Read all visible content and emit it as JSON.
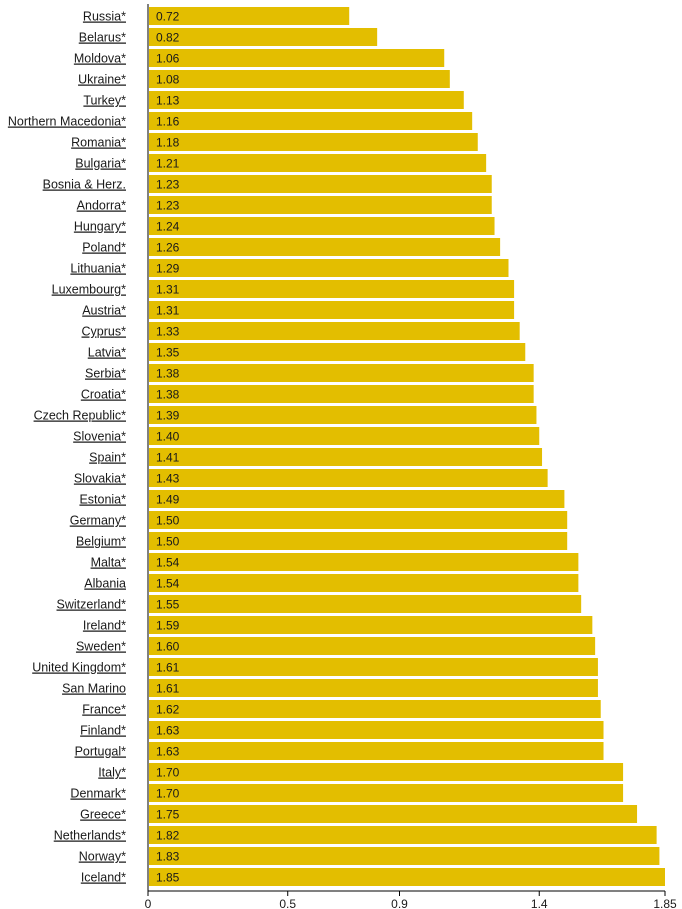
{
  "chart_data": {
    "type": "bar",
    "orientation": "horizontal",
    "bar_color": "#E3BE00",
    "categories": [
      "Russia*",
      "Belarus*",
      "Moldova*",
      "Ukraine*",
      "Turkey*",
      "Northern Macedonia*",
      "Romania*",
      "Bulgaria*",
      "Bosnia & Herz.",
      "Andorra*",
      "Hungary*",
      "Poland*",
      "Lithuania*",
      "Luxembourg*",
      "Austria*",
      "Cyprus*",
      "Latvia*",
      "Serbia*",
      "Croatia*",
      "Czech Republic*",
      "Slovenia*",
      "Spain*",
      "Slovakia*",
      "Estonia*",
      "Germany*",
      "Belgium*",
      "Malta*",
      "Albania",
      "Switzerland*",
      "Ireland*",
      "Sweden*",
      "United Kingdom*",
      "San Marino",
      "France*",
      "Finland*",
      "Portugal*",
      "Italy*",
      "Denmark*",
      "Greece*",
      "Netherlands*",
      "Norway*",
      "Iceland*"
    ],
    "values": [
      0.72,
      0.82,
      1.06,
      1.08,
      1.13,
      1.16,
      1.18,
      1.21,
      1.23,
      1.23,
      1.24,
      1.26,
      1.29,
      1.31,
      1.31,
      1.33,
      1.35,
      1.38,
      1.38,
      1.39,
      1.4,
      1.41,
      1.43,
      1.49,
      1.5,
      1.5,
      1.54,
      1.54,
      1.55,
      1.59,
      1.6,
      1.61,
      1.61,
      1.62,
      1.63,
      1.63,
      1.7,
      1.7,
      1.75,
      1.82,
      1.83,
      1.85
    ],
    "value_labels": [
      "0.72",
      "0.82",
      "1.06",
      "1.08",
      "1.13",
      "1.16",
      "1.18",
      "1.21",
      "1.23",
      "1.23",
      "1.24",
      "1.26",
      "1.29",
      "1.31",
      "1.31",
      "1.33",
      "1.35",
      "1.38",
      "1.38",
      "1.39",
      "1.40",
      "1.41",
      "1.43",
      "1.49",
      "1.50",
      "1.50",
      "1.54",
      "1.54",
      "1.55",
      "1.59",
      "1.60",
      "1.61",
      "1.61",
      "1.62",
      "1.63",
      "1.63",
      "1.70",
      "1.70",
      "1.75",
      "1.82",
      "1.83",
      "1.85"
    ],
    "xlim": [
      0,
      1.85
    ],
    "x_ticks": [
      0,
      0.5,
      0.9,
      1.4,
      1.85
    ],
    "x_tick_labels": [
      "0",
      "0.5",
      "0.9",
      "1.4",
      "1.85"
    ],
    "title": "",
    "xlabel": "",
    "ylabel": "",
    "grid": false,
    "legend": "none"
  }
}
